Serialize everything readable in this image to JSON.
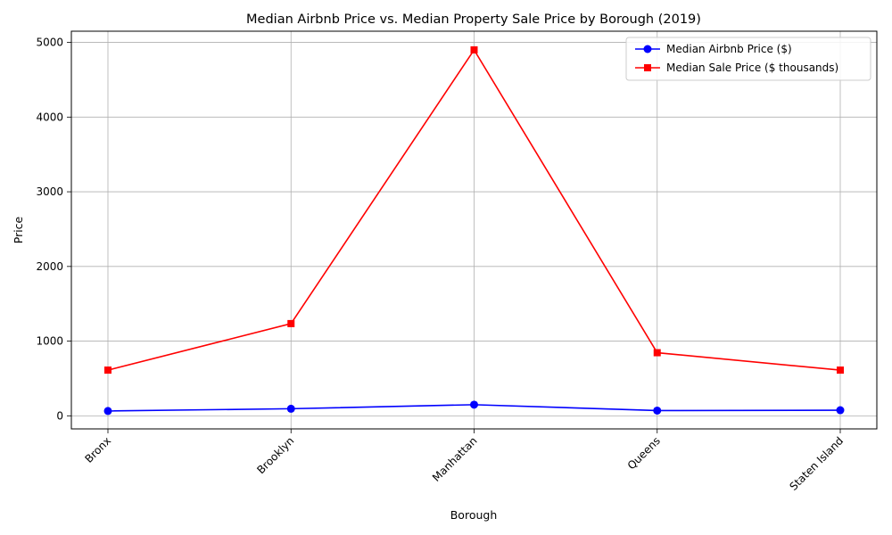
{
  "chart_data": {
    "type": "line",
    "title": "Median Airbnb Price vs. Median Property Sale Price by Borough (2019)",
    "xlabel": "Borough",
    "ylabel": "Price",
    "categories": [
      "Bronx",
      "Brooklyn",
      "Manhattan",
      "Queens",
      "Staten Island"
    ],
    "ylim": [
      -175,
      5150
    ],
    "yticks": [
      0,
      1000,
      2000,
      3000,
      4000,
      5000
    ],
    "grid": true,
    "legend_position": "top-right",
    "series": [
      {
        "name": "Median Airbnb Price ($)",
        "values": [
          65,
          95,
          149,
          70,
          75
        ],
        "color": "#0000ff",
        "marker": "circle"
      },
      {
        "name": "Median Sale Price ($ thousands)",
        "values": [
          612,
          1235,
          4900,
          845,
          612
        ],
        "color": "#ff0000",
        "marker": "square"
      }
    ]
  }
}
